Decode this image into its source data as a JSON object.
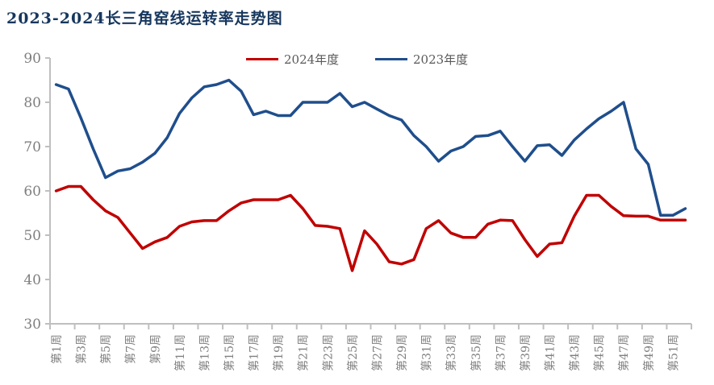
{
  "title": "2023-2024长三角窑线运转率走势图",
  "legend": {
    "items": [
      {
        "label": "2024年度",
        "color": "#C00000"
      },
      {
        "label": "2023年度",
        "color": "#1F4E8C"
      }
    ]
  },
  "chart_data": {
    "type": "line",
    "title": "2023-2024长三角窑线运转率走势图",
    "categories": [
      "第1周",
      "第2周",
      "第3周",
      "第4周",
      "第5周",
      "第6周",
      "第7周",
      "第8周",
      "第9周",
      "第10周",
      "第11周",
      "第12周",
      "第13周",
      "第14周",
      "第15周",
      "第16周",
      "第17周",
      "第18周",
      "第19周",
      "第20周",
      "第21周",
      "第22周",
      "第23周",
      "第24周",
      "第25周",
      "第26周",
      "第27周",
      "第28周",
      "第29周",
      "第30周",
      "第31周",
      "第32周",
      "第33周",
      "第34周",
      "第35周",
      "第36周",
      "第37周",
      "第38周",
      "第39周",
      "第40周",
      "第41周",
      "第42周",
      "第43周",
      "第44周",
      "第45周",
      "第46周",
      "第47周",
      "第48周",
      "第49周",
      "第50周",
      "第51周",
      "第52周"
    ],
    "x_tick_label_interval": 2,
    "x_tick_labels_shown": [
      "第1周",
      "第3周",
      "第5周",
      "第7周",
      "第9周",
      "第11周",
      "第13周",
      "第15周",
      "第17周",
      "第19周",
      "第21周",
      "第23周",
      "第25周",
      "第27周",
      "第29周",
      "第31周",
      "第33周",
      "第35周",
      "第37周",
      "第39周",
      "第41周",
      "第43周",
      "第45周",
      "第47周",
      "第49周",
      "第51周"
    ],
    "series": [
      {
        "name": "2024年度",
        "color": "#C00000",
        "values": [
          60,
          61,
          61,
          58,
          55.5,
          54,
          50.5,
          47,
          48.5,
          49.5,
          52,
          53,
          53.3,
          53.3,
          55.5,
          57.3,
          58,
          58,
          58,
          59,
          56,
          52.2,
          52,
          51.5,
          42,
          51,
          48,
          44,
          43.5,
          44.5,
          51.5,
          53.3,
          50.5,
          49.5,
          49.5,
          52.5,
          53.4,
          53.3,
          49,
          45.2,
          48,
          48.3,
          54.3,
          59,
          59,
          56.5,
          54.4,
          54.3,
          54.3,
          53.4,
          53.4,
          53.4
        ]
      },
      {
        "name": "2023年度",
        "color": "#1F4E8C",
        "values": [
          84,
          83,
          76.5,
          69.5,
          63,
          64.5,
          65,
          66.5,
          68.5,
          72,
          77.5,
          81,
          83.5,
          84,
          85,
          82.5,
          77.2,
          78,
          77,
          77,
          80,
          80,
          80,
          82,
          79,
          80,
          78.5,
          77,
          76,
          72.5,
          70,
          66.7,
          69,
          70,
          72.3,
          72.5,
          73.5,
          70,
          66.7,
          70.2,
          70.4,
          68,
          71.5,
          74,
          76.3,
          78,
          80,
          69.5,
          66,
          54.5,
          54.5,
          56
        ]
      }
    ],
    "ylim": [
      30,
      90
    ],
    "y_ticks": [
      30,
      40,
      50,
      60,
      70,
      80,
      90
    ],
    "grid": false,
    "legend_position": "top-center",
    "axis_color": "#BFBFBF",
    "tick_label_color": "#7F7F7F"
  }
}
